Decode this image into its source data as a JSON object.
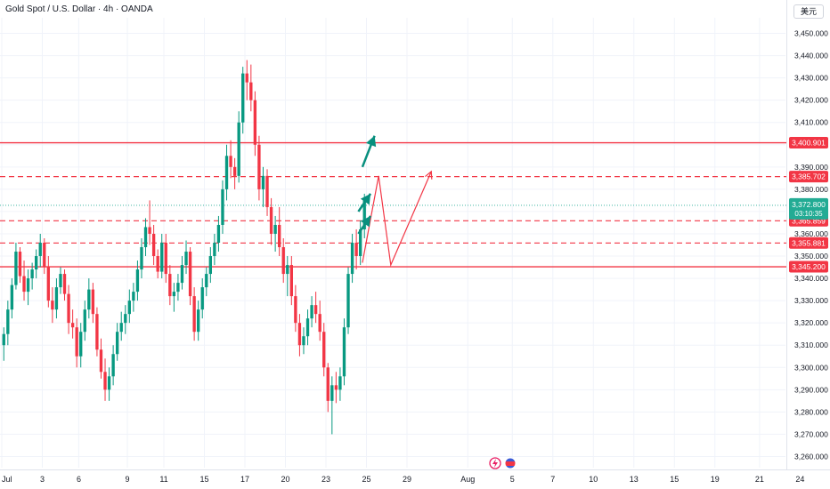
{
  "header": {
    "title": "Gold Spot / U.S. Dollar · 4h · OANDA",
    "currency_button": "美元"
  },
  "colors": {
    "up": "#089981",
    "down": "#f23645",
    "level": "#f23645",
    "current_price": "#22ab94",
    "arrow_green": "#088f7e",
    "grid": "#f0f3fa",
    "axis_text": "#131722"
  },
  "chart_data": {
    "type": "candlestick",
    "title": "",
    "ylim": [
      3255,
      3457
    ],
    "y_ticks": [
      3260,
      3270,
      3280,
      3290,
      3300,
      3310,
      3320,
      3330,
      3340,
      3350,
      3360,
      3370,
      3380,
      3390,
      3400,
      3410,
      3420,
      3430,
      3440,
      3450
    ],
    "y_tick_labels": [
      "3,260.000",
      "3,270.000",
      "3,280.000",
      "3,290.000",
      "3,300.000",
      "3,310.000",
      "3,320.000",
      "3,330.000",
      "3,340.000",
      "3,350.000",
      "3,360.000",
      "3,370.000",
      "3,380.000",
      "3,390.000",
      "3,400.000",
      "3,410.000",
      "3,420.000",
      "3,430.000",
      "3,440.000",
      "3,450.000"
    ],
    "x_ticks": [
      {
        "label": "Jul",
        "bar": 0
      },
      {
        "label": "3",
        "bar": 10
      },
      {
        "label": "6",
        "bar": 19
      },
      {
        "label": "9",
        "bar": 31
      },
      {
        "label": "11",
        "bar": 40
      },
      {
        "label": "15",
        "bar": 50
      },
      {
        "label": "17",
        "bar": 60
      },
      {
        "label": "20",
        "bar": 70
      },
      {
        "label": "23",
        "bar": 80
      },
      {
        "label": "25",
        "bar": 90
      },
      {
        "label": "29",
        "bar": 100
      },
      {
        "label": "Aug",
        "bar": 115
      },
      {
        "label": "5",
        "bar": 126
      },
      {
        "label": "7",
        "bar": 136
      },
      {
        "label": "10",
        "bar": 146
      },
      {
        "label": "13",
        "bar": 156
      },
      {
        "label": "15",
        "bar": 166
      },
      {
        "label": "19",
        "bar": 176
      },
      {
        "label": "21",
        "bar": 187
      },
      {
        "label": "24",
        "bar": 197
      }
    ],
    "levels": [
      {
        "price": 3400.901,
        "label": "3,400.901",
        "style": "solid"
      },
      {
        "price": 3385.702,
        "label": "3,385.702",
        "style": "dashed"
      },
      {
        "price": 3365.859,
        "label": "3,365.859",
        "style": "dashed"
      },
      {
        "price": 3355.881,
        "label": "3,355.881",
        "style": "dashed"
      },
      {
        "price": 3345.2,
        "label": "3,345.200",
        "style": "solid"
      }
    ],
    "current_price": {
      "price": 3372.8,
      "label": "3,372.800",
      "countdown": "03:10:35"
    },
    "ohlc": [
      [
        3310,
        3318,
        3303,
        3315
      ],
      [
        3315,
        3330,
        3310,
        3326
      ],
      [
        3326,
        3340,
        3322,
        3337
      ],
      [
        3337,
        3356,
        3335,
        3352
      ],
      [
        3352,
        3354,
        3338,
        3341
      ],
      [
        3341,
        3348,
        3330,
        3334
      ],
      [
        3334,
        3344,
        3328,
        3340
      ],
      [
        3340,
        3347,
        3335,
        3344
      ],
      [
        3344,
        3353,
        3340,
        3350
      ],
      [
        3350,
        3360,
        3345,
        3356
      ],
      [
        3356,
        3358,
        3342,
        3345
      ],
      [
        3345,
        3350,
        3327,
        3330
      ],
      [
        3330,
        3336,
        3320,
        3326
      ],
      [
        3326,
        3340,
        3322,
        3336
      ],
      [
        3336,
        3345,
        3333,
        3342
      ],
      [
        3342,
        3344,
        3330,
        3333
      ],
      [
        3333,
        3337,
        3315,
        3320
      ],
      [
        3320,
        3326,
        3313,
        3318
      ],
      [
        3318,
        3322,
        3300,
        3305
      ],
      [
        3305,
        3320,
        3300,
        3316
      ],
      [
        3316,
        3330,
        3312,
        3326
      ],
      [
        3326,
        3340,
        3322,
        3335
      ],
      [
        3335,
        3338,
        3320,
        3324
      ],
      [
        3324,
        3327,
        3305,
        3308
      ],
      [
        3308,
        3313,
        3295,
        3298
      ],
      [
        3298,
        3304,
        3285,
        3290
      ],
      [
        3290,
        3300,
        3285,
        3296
      ],
      [
        3296,
        3310,
        3292,
        3306
      ],
      [
        3306,
        3320,
        3303,
        3316
      ],
      [
        3316,
        3325,
        3312,
        3320
      ],
      [
        3320,
        3328,
        3315,
        3324
      ],
      [
        3324,
        3335,
        3320,
        3330
      ],
      [
        3330,
        3338,
        3325,
        3334
      ],
      [
        3334,
        3348,
        3330,
        3344
      ],
      [
        3344,
        3358,
        3340,
        3354
      ],
      [
        3354,
        3367,
        3350,
        3363
      ],
      [
        3363,
        3375,
        3355,
        3360
      ],
      [
        3360,
        3364,
        3346,
        3350
      ],
      [
        3350,
        3353,
        3340,
        3343
      ],
      [
        3343,
        3360,
        3340,
        3356
      ],
      [
        3356,
        3360,
        3338,
        3342
      ],
      [
        3342,
        3346,
        3328,
        3332
      ],
      [
        3332,
        3338,
        3325,
        3334
      ],
      [
        3334,
        3342,
        3330,
        3338
      ],
      [
        3338,
        3350,
        3335,
        3346
      ],
      [
        3346,
        3357,
        3342,
        3352
      ],
      [
        3352,
        3354,
        3328,
        3332
      ],
      [
        3332,
        3336,
        3312,
        3316
      ],
      [
        3316,
        3330,
        3312,
        3326
      ],
      [
        3326,
        3340,
        3322,
        3336
      ],
      [
        3336,
        3345,
        3332,
        3342
      ],
      [
        3342,
        3354,
        3338,
        3350
      ],
      [
        3350,
        3360,
        3346,
        3356
      ],
      [
        3356,
        3368,
        3352,
        3364
      ],
      [
        3364,
        3384,
        3360,
        3380
      ],
      [
        3380,
        3400,
        3375,
        3395
      ],
      [
        3395,
        3402,
        3385,
        3390
      ],
      [
        3390,
        3394,
        3380,
        3386
      ],
      [
        3386,
        3415,
        3383,
        3410
      ],
      [
        3410,
        3435,
        3405,
        3432
      ],
      [
        3432,
        3438,
        3420,
        3428
      ],
      [
        3428,
        3436,
        3415,
        3420
      ],
      [
        3420,
        3424,
        3395,
        3400
      ],
      [
        3400,
        3404,
        3375,
        3380
      ],
      [
        3380,
        3390,
        3372,
        3386
      ],
      [
        3386,
        3389,
        3368,
        3372
      ],
      [
        3372,
        3376,
        3355,
        3360
      ],
      [
        3360,
        3368,
        3352,
        3364
      ],
      [
        3364,
        3372,
        3350,
        3354
      ],
      [
        3354,
        3358,
        3338,
        3342
      ],
      [
        3342,
        3350,
        3332,
        3346
      ],
      [
        3346,
        3350,
        3328,
        3332
      ],
      [
        3332,
        3337,
        3316,
        3320
      ],
      [
        3320,
        3324,
        3305,
        3310
      ],
      [
        3310,
        3318,
        3306,
        3314
      ],
      [
        3314,
        3326,
        3310,
        3322
      ],
      [
        3322,
        3332,
        3318,
        3328
      ],
      [
        3328,
        3334,
        3320,
        3324
      ],
      [
        3324,
        3330,
        3312,
        3316
      ],
      [
        3316,
        3320,
        3296,
        3300
      ],
      [
        3300,
        3302,
        3280,
        3285
      ],
      [
        3285,
        3296,
        3270,
        3292
      ],
      [
        3292,
        3298,
        3284,
        3290
      ],
      [
        3290,
        3300,
        3285,
        3296
      ],
      [
        3296,
        3322,
        3292,
        3318
      ],
      [
        3318,
        3345,
        3315,
        3342
      ],
      [
        3342,
        3360,
        3338,
        3356
      ],
      [
        3356,
        3362,
        3344,
        3350
      ],
      [
        3350,
        3366,
        3346,
        3362
      ],
      [
        3362,
        3378,
        3358,
        3375
      ]
    ],
    "projection_arrows": [
      {
        "color": "red",
        "points": [
          [
            3347,
            0
          ],
          [
            3386,
            4
          ],
          [
            3346,
            7
          ],
          [
            3388,
            17
          ]
        ]
      },
      {
        "color": "green",
        "points": [
          [
            3370,
            0
          ],
          [
            3378,
            3
          ]
        ]
      },
      {
        "color": "green",
        "points": [
          [
            3360,
            0
          ],
          [
            3368,
            3
          ]
        ]
      },
      {
        "color": "green",
        "points": [
          [
            3390,
            0
          ],
          [
            3404,
            3
          ]
        ]
      }
    ]
  }
}
